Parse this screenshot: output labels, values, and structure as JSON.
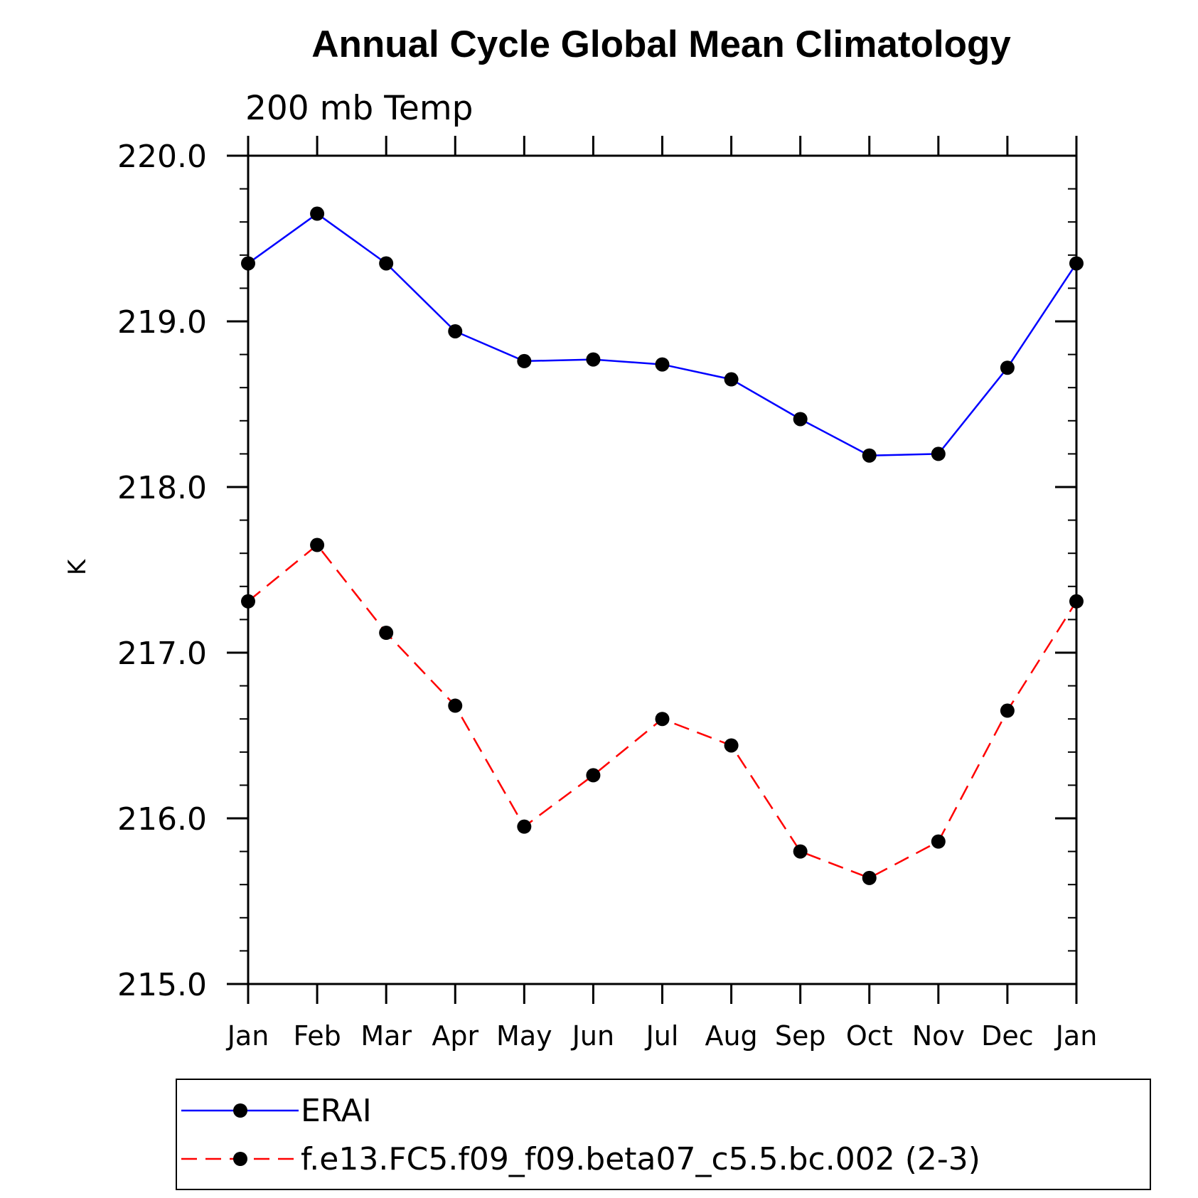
{
  "chart_data": {
    "type": "line",
    "title": "Annual Cycle Global Mean Climatology",
    "subtitle": "200 mb Temp",
    "ylabel": "K",
    "xlabel": "",
    "categories": [
      "Jan",
      "Feb",
      "Mar",
      "Apr",
      "May",
      "Jun",
      "Jul",
      "Aug",
      "Sep",
      "Oct",
      "Nov",
      "Dec",
      "Jan"
    ],
    "ylim": [
      215.0,
      220.0
    ],
    "yticks": [
      215.0,
      216.0,
      217.0,
      218.0,
      219.0,
      220.0
    ],
    "ytick_labels": [
      "215.0",
      "216.0",
      "217.0",
      "218.0",
      "219.0",
      "220.0"
    ],
    "grid": false,
    "legend_position": "bottom",
    "series": [
      {
        "name": "ERAI",
        "color": "#0000ff",
        "line_style": "solid",
        "marker": "filled-circle",
        "values": [
          219.35,
          219.65,
          219.35,
          218.94,
          218.76,
          218.77,
          218.74,
          218.65,
          218.41,
          218.19,
          218.2,
          218.72,
          219.35
        ]
      },
      {
        "name": "f.e13.FC5.f09_f09.beta07_c5.5.bc.002 (2-3)",
        "color": "#ff0000",
        "line_style": "dashed",
        "marker": "filled-circle",
        "values": [
          217.31,
          217.65,
          217.12,
          216.68,
          215.95,
          216.26,
          216.6,
          216.44,
          215.8,
          215.64,
          215.86,
          216.65,
          217.31
        ]
      }
    ]
  }
}
